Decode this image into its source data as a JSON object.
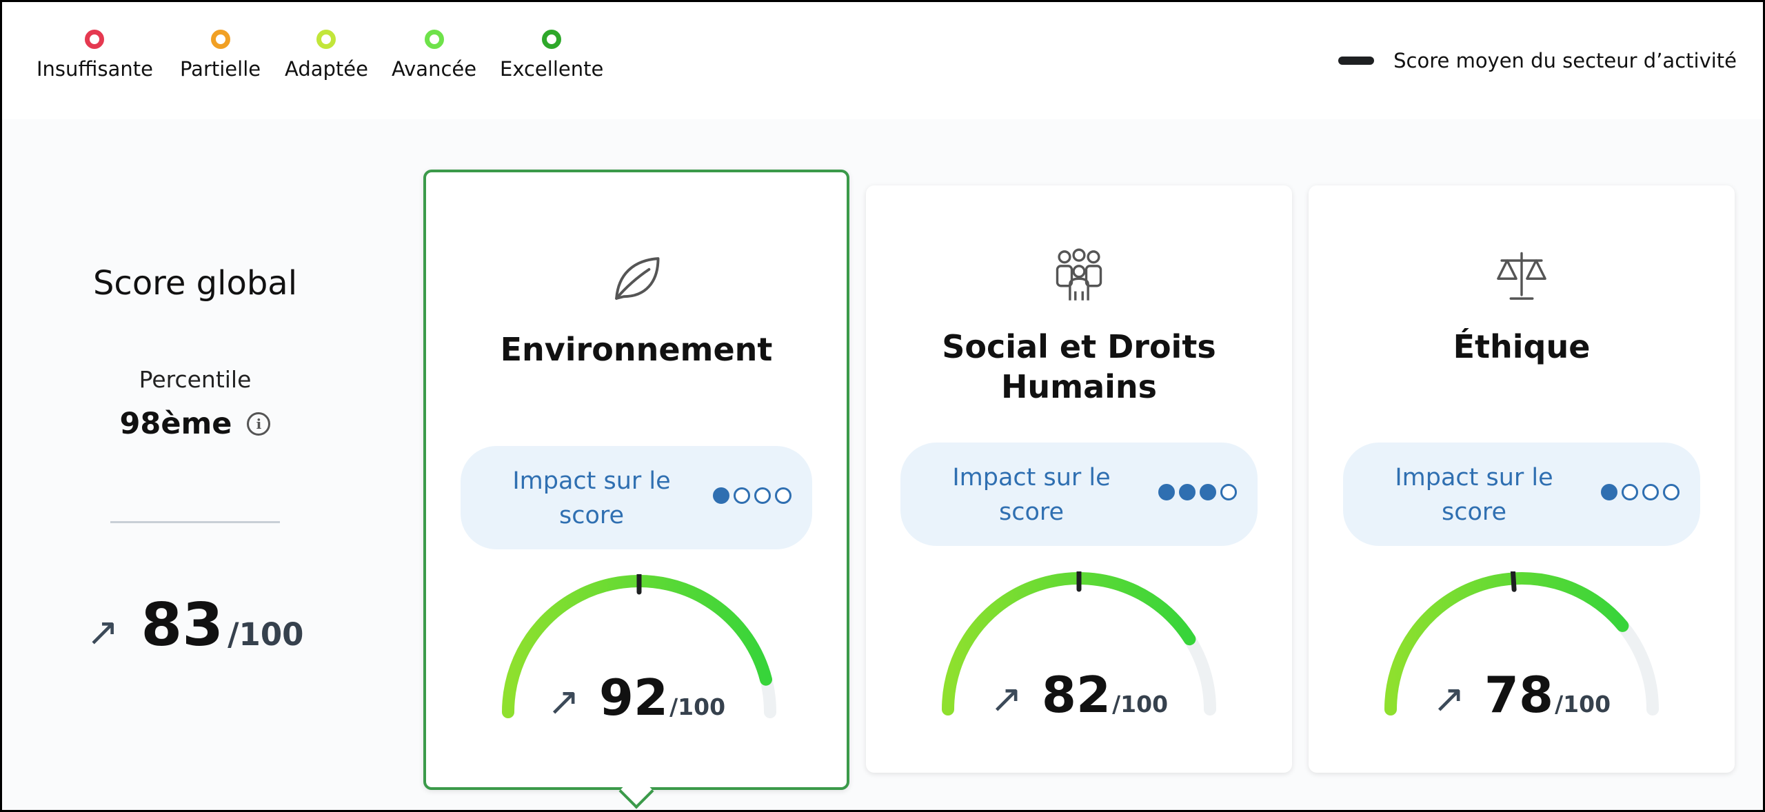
{
  "legend": {
    "items": [
      {
        "label": "Insuffisante",
        "color": "#e53950"
      },
      {
        "label": "Partielle",
        "color": "#f1a024"
      },
      {
        "label": "Adaptée",
        "color": "#c2e63a"
      },
      {
        "label": "Avancée",
        "color": "#6ee24a"
      },
      {
        "label": "Excellente",
        "color": "#2ea82a"
      }
    ],
    "sector_average_label": "Score moyen du secteur d’activité"
  },
  "global": {
    "title": "Score global",
    "percentile_label": "Percentile",
    "percentile_value": "98ème",
    "score": "83",
    "max": "/100"
  },
  "cards": [
    {
      "icon": "leaf-icon",
      "title": "Environnement",
      "impact_label": "Impact sur le score",
      "impact_level": 1,
      "impact_total": 4,
      "score": "92",
      "max": "/100",
      "score_fraction": 0.92,
      "sector_average_fraction": 0.5,
      "selected": true
    },
    {
      "icon": "people-group-icon",
      "title": "Social et Droits Humains",
      "impact_label": "Impact sur le score",
      "impact_level": 3,
      "impact_total": 4,
      "score": "82",
      "max": "/100",
      "score_fraction": 0.82,
      "sector_average_fraction": 0.5,
      "selected": false
    },
    {
      "icon": "scales-icon",
      "title": "Éthique",
      "impact_label": "Impact sur le score",
      "impact_level": 1,
      "impact_total": 4,
      "score": "78",
      "max": "/100",
      "score_fraction": 0.78,
      "sector_average_fraction": 0.48,
      "selected": false
    }
  ],
  "colors": {
    "gauge_track": "#eef1f3",
    "gauge_start": "#8fe02e",
    "gauge_end": "#37d43a",
    "selected_border": "#3b9a4a",
    "accent_blue": "#2f6fb1"
  }
}
